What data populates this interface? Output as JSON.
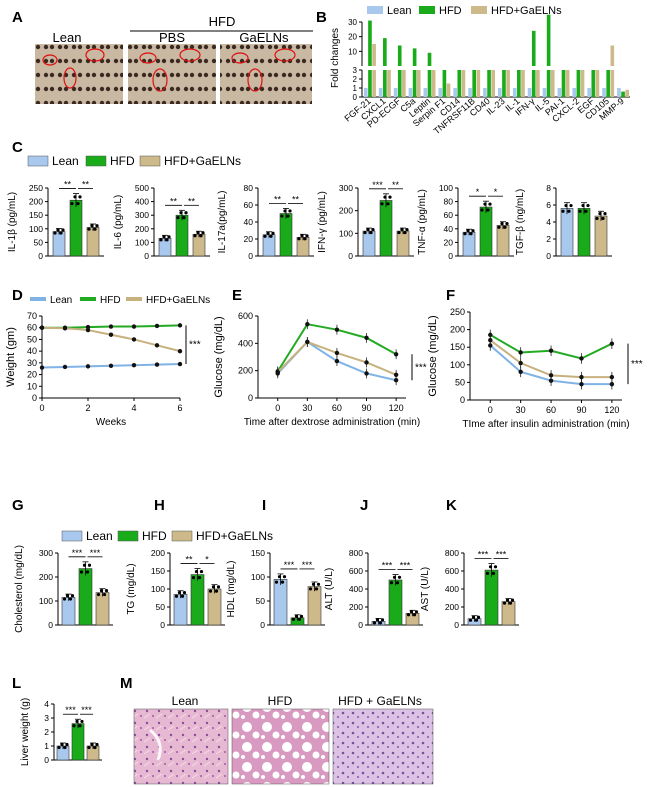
{
  "figure": {
    "panel_letters": [
      "A",
      "B",
      "C",
      "D",
      "E",
      "F",
      "G",
      "H",
      "I",
      "J",
      "K",
      "L",
      "M"
    ],
    "legend": {
      "lean": "Lean",
      "hfd": "HFD",
      "hfd_galn": "HFD+GaELNs"
    },
    "colors": {
      "lean": "#a8c8ee",
      "hfd": "#1aab1a",
      "hfd_galn": "#cdb98a",
      "line_lean": "#7fb3e6",
      "line_hfd": "#22aa22",
      "line_galn": "#c7b17e"
    }
  },
  "panel_a": {
    "group_header": "HFD",
    "columns": [
      "Lean",
      "PBS",
      "GaELNs"
    ]
  },
  "panel_m": {
    "columns": [
      "Lean",
      "HFD",
      "HFD + GaELNs"
    ]
  },
  "chart_data": [
    {
      "panel": "B",
      "type": "bar",
      "title": "",
      "ylabel": "Fold changes",
      "yticks_top": [
        "10",
        "20",
        "30"
      ],
      "yticks_bottom": [
        "0",
        "1",
        "2",
        "3"
      ],
      "categories": [
        "FGF-21",
        "CXCL1",
        "PD-ECGF",
        "C5a",
        "Leptin",
        "Serpin F1",
        "CD14",
        "TNFRSF11B",
        "CD40",
        "IL-23",
        "IL-1",
        "IFN-γ",
        "IL-5",
        "PAI-1",
        "CXCL-2",
        "EGF",
        "CD105",
        "MMP-9"
      ],
      "series": [
        {
          "name": "Lean",
          "values": [
            1,
            1,
            1,
            1,
            1,
            1,
            1,
            1,
            1,
            1,
            1,
            1,
            1,
            1,
            1,
            1,
            1,
            1
          ]
        },
        {
          "name": "HFD",
          "values": [
            31,
            19,
            14,
            12,
            9,
            3,
            3,
            3,
            3,
            3,
            3,
            24,
            35,
            3,
            3,
            3,
            3,
            0.6
          ]
        },
        {
          "name": "HFD+GaELNs",
          "values": [
            15,
            3,
            3,
            3,
            3,
            1.5,
            3,
            3,
            3,
            3,
            3,
            3,
            3,
            3,
            3,
            3,
            14,
            0.8
          ]
        }
      ]
    },
    {
      "panel": "C",
      "type": "bar",
      "subplots": [
        {
          "ylabel": "IL-1β (pg/mL)",
          "yticks": [
            "0",
            "50",
            "100",
            "150",
            "200",
            "250"
          ],
          "ylim": [
            0,
            250
          ],
          "values": [
            90,
            205,
            105
          ],
          "sig": [
            "**",
            "**"
          ]
        },
        {
          "ylabel": "IL-6 (pg/mL)",
          "yticks": [
            "0",
            "100",
            "200",
            "300",
            "400",
            "500"
          ],
          "ylim": [
            0,
            500
          ],
          "values": [
            130,
            300,
            160
          ],
          "sig": [
            "**",
            "**"
          ]
        },
        {
          "ylabel": "IL-17a(pg/mL)",
          "yticks": [
            "0",
            "20",
            "40",
            "60",
            "80"
          ],
          "ylim": [
            0,
            80
          ],
          "values": [
            25,
            50,
            22
          ],
          "sig": [
            "**",
            "**"
          ]
        },
        {
          "ylabel": "IFN-γ (pg/mL)",
          "yticks": [
            "0",
            "100",
            "200",
            "300"
          ],
          "ylim": [
            0,
            300
          ],
          "values": [
            110,
            245,
            110
          ],
          "sig": [
            "***",
            "**"
          ]
        },
        {
          "ylabel": "TNF-α (pg/mL)",
          "yticks": [
            "0",
            "20",
            "40",
            "60",
            "80",
            "100"
          ],
          "ylim": [
            0,
            100
          ],
          "values": [
            35,
            72,
            45
          ],
          "sig": [
            "*",
            "*"
          ]
        },
        {
          "ylabel": "TGF-β (ng/mL)",
          "yticks": [
            "0",
            "2",
            "4",
            "6",
            "8"
          ],
          "ylim": [
            0,
            8
          ],
          "values": [
            5.6,
            5.6,
            4.7
          ],
          "sig": [
            "",
            ""
          ]
        }
      ]
    },
    {
      "panel": "D",
      "type": "line",
      "xlabel": "Weeks",
      "ylabel": "Weight (gm)",
      "x": [
        0,
        1,
        2,
        3,
        4,
        5,
        6
      ],
      "xticks": [
        "0",
        "2",
        "4",
        "6"
      ],
      "yticks": [
        "0",
        "10",
        "20",
        "30",
        "40",
        "50",
        "60",
        "70"
      ],
      "xlim": [
        0,
        6
      ],
      "ylim": [
        0,
        70
      ],
      "series": [
        {
          "name": "Lean",
          "values": [
            26,
            26.5,
            27,
            27.5,
            28,
            28.5,
            29
          ]
        },
        {
          "name": "HFD",
          "values": [
            60,
            60,
            60.5,
            61,
            61,
            61.5,
            62
          ]
        },
        {
          "name": "HFD+GaELNs",
          "values": [
            60,
            59.5,
            58,
            54,
            50,
            45,
            40
          ]
        }
      ],
      "sig": "***"
    },
    {
      "panel": "E",
      "type": "line",
      "xlabel": "Time after dextrose administration (min)",
      "ylabel": "Glucose (mg/dL)",
      "x": [
        0,
        30,
        60,
        90,
        120
      ],
      "xticks": [
        "0",
        "30",
        "60",
        "90",
        "120"
      ],
      "yticks": [
        "0",
        "200",
        "400",
        "600"
      ],
      "xlim": [
        -20,
        130
      ],
      "ylim": [
        0,
        600
      ],
      "series": [
        {
          "name": "Lean",
          "values": [
            180,
            410,
            270,
            180,
            130
          ]
        },
        {
          "name": "HFD",
          "values": [
            195,
            540,
            500,
            440,
            320
          ]
        },
        {
          "name": "HFD+GaELNs",
          "values": [
            190,
            410,
            330,
            260,
            170
          ]
        }
      ],
      "sig": "***"
    },
    {
      "panel": "F",
      "type": "line",
      "xlabel": "TIme after insulin administration (min)",
      "ylabel": "Glucose (mg/dL)",
      "x": [
        0,
        30,
        60,
        90,
        120
      ],
      "xticks": [
        "0",
        "30",
        "60",
        "90",
        "120"
      ],
      "yticks": [
        "0",
        "50",
        "100",
        "150",
        "200",
        "250"
      ],
      "xlim": [
        -20,
        130
      ],
      "ylim": [
        0,
        250
      ],
      "series": [
        {
          "name": "Lean",
          "values": [
            155,
            80,
            55,
            45,
            45
          ]
        },
        {
          "name": "HFD",
          "values": [
            185,
            135,
            140,
            118,
            160
          ]
        },
        {
          "name": "HFD+GaELNs",
          "values": [
            170,
            105,
            70,
            65,
            65
          ]
        }
      ],
      "sig": "***"
    },
    {
      "panel": "G-K",
      "type": "bar",
      "subplots": [
        {
          "ylabel": "Cholesterol (mg/dL)",
          "yticks": [
            "0",
            "100",
            "200",
            "300"
          ],
          "ylim": [
            0,
            300
          ],
          "values": [
            115,
            235,
            135
          ],
          "sig": [
            "***",
            "***"
          ]
        },
        {
          "ylabel": "TG (mg/dL)",
          "yticks": [
            "0",
            "50",
            "100",
            "150",
            "200"
          ],
          "ylim": [
            0,
            200
          ],
          "values": [
            85,
            140,
            100
          ],
          "sig": [
            "**",
            "*"
          ]
        },
        {
          "ylabel": "HDL (mg/dL)",
          "yticks": [
            "0",
            "50",
            "100",
            "150"
          ],
          "ylim": [
            0,
            150
          ],
          "values": [
            95,
            15,
            80
          ],
          "sig": [
            "***",
            "***"
          ]
        },
        {
          "ylabel": "ALT (U/L)",
          "yticks": [
            "0",
            "200",
            "400",
            "600",
            "800"
          ],
          "ylim": [
            0,
            800
          ],
          "values": [
            40,
            500,
            130
          ],
          "sig": [
            "***",
            "***"
          ]
        },
        {
          "ylabel": "AST (U/L)",
          "yticks": [
            "0",
            "200",
            "400",
            "600",
            "800"
          ],
          "ylim": [
            0,
            800
          ],
          "values": [
            70,
            610,
            260
          ],
          "sig": [
            "***",
            "***"
          ]
        }
      ]
    },
    {
      "panel": "L",
      "type": "bar",
      "ylabel": "Liver weight (g)",
      "yticks": [
        "0",
        "1",
        "2",
        "3",
        "4"
      ],
      "ylim": [
        0,
        4
      ],
      "values": [
        1.0,
        2.6,
        1.0
      ],
      "sig": [
        "***",
        "***"
      ]
    }
  ]
}
